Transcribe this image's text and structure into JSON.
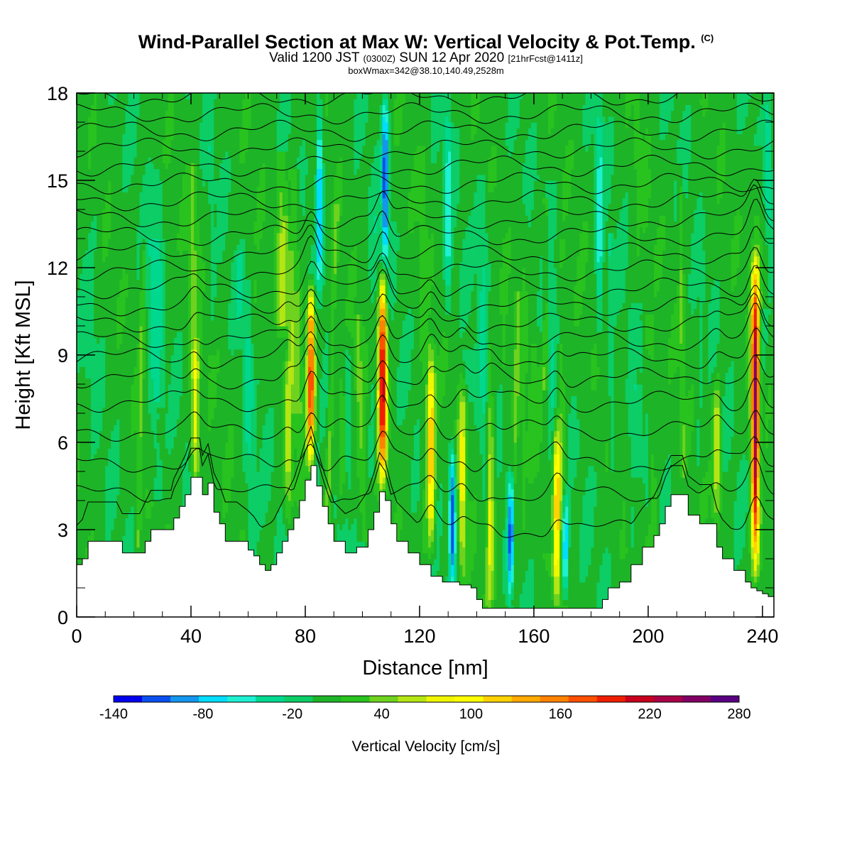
{
  "title": "Wind-Parallel Section at Max W: Vertical Velocity & Pot.Temp.",
  "title_mark": "(C)",
  "subtitle_parts": [
    "Valid 1200 JST ",
    "(0300Z)",
    " SUN 12 Apr 2020 ",
    "[21hrFcst@1411z]"
  ],
  "subtitle2": "boxWmax=342@38.10,140.49,2528m",
  "chart_data": {
    "type": "heatmap",
    "xlabel": "Distance [nm]",
    "ylabel": "Height [Kft MSL]",
    "xlim": [
      0,
      244
    ],
    "ylim": [
      0,
      18
    ],
    "xticks": [
      "0",
      "40",
      "80",
      "120",
      "160",
      "200",
      "240"
    ],
    "yticks": [
      "0",
      "3",
      "6",
      "9",
      "12",
      "15",
      "18"
    ],
    "colorbar": {
      "label": "Vertical Velocity [cm/s]",
      "tick_labels": [
        "-140",
        "-80",
        "-20",
        "40",
        "100",
        "160",
        "220",
        "280"
      ],
      "levels": [
        -140,
        -120,
        -100,
        -80,
        -60,
        -40,
        -20,
        0,
        20,
        40,
        60,
        80,
        100,
        120,
        140,
        160,
        180,
        200,
        220,
        240,
        260,
        280
      ],
      "colors": [
        "#0000ee",
        "#0a50f0",
        "#1496ee",
        "#00ddff",
        "#1ef0d2",
        "#00d890",
        "#0ccd66",
        "#1eb428",
        "#28c31e",
        "#6ed21e",
        "#b4e614",
        "#f0f500",
        "#ffff00",
        "#ffd200",
        "#ffaa00",
        "#ff8200",
        "#ff5000",
        "#f01e00",
        "#c8001e",
        "#aa0046",
        "#820064",
        "#5a0082"
      ]
    },
    "terrain_kft": [
      [
        0,
        1.8
      ],
      [
        2,
        2.0
      ],
      [
        4,
        2.6
      ],
      [
        14,
        2.6
      ],
      [
        16,
        2.2
      ],
      [
        22,
        2.2
      ],
      [
        24,
        2.6
      ],
      [
        26,
        3.0
      ],
      [
        33,
        3.0
      ],
      [
        34,
        3.4
      ],
      [
        36,
        3.8
      ],
      [
        38,
        4.2
      ],
      [
        40,
        4.8
      ],
      [
        43,
        4.8
      ],
      [
        44,
        4.2
      ],
      [
        46,
        4.6
      ],
      [
        48,
        3.6
      ],
      [
        50,
        3.2
      ],
      [
        52,
        2.6
      ],
      [
        56,
        2.6
      ],
      [
        60,
        2.3
      ],
      [
        62,
        2.1
      ],
      [
        64,
        1.8
      ],
      [
        66,
        1.6
      ],
      [
        68,
        1.8
      ],
      [
        70,
        2.2
      ],
      [
        72,
        2.6
      ],
      [
        74,
        3.0
      ],
      [
        76,
        3.4
      ],
      [
        78,
        4.0
      ],
      [
        80,
        4.7
      ],
      [
        82,
        5.2
      ],
      [
        84,
        4.5
      ],
      [
        86,
        3.8
      ],
      [
        88,
        3.2
      ],
      [
        90,
        2.6
      ],
      [
        94,
        2.2
      ],
      [
        98,
        2.4
      ],
      [
        102,
        3.0
      ],
      [
        104,
        3.6
      ],
      [
        106,
        4.3
      ],
      [
        108,
        4.0
      ],
      [
        110,
        3.2
      ],
      [
        112,
        2.6
      ],
      [
        116,
        2.2
      ],
      [
        120,
        1.8
      ],
      [
        124,
        1.4
      ],
      [
        128,
        1.2
      ],
      [
        134,
        1.1
      ],
      [
        138,
        1.0
      ],
      [
        140,
        0.6
      ],
      [
        142,
        0.3
      ],
      [
        182,
        0.3
      ],
      [
        184,
        0.6
      ],
      [
        186,
        1.0
      ],
      [
        190,
        1.2
      ],
      [
        194,
        1.8
      ],
      [
        198,
        2.4
      ],
      [
        202,
        2.8
      ],
      [
        204,
        3.2
      ],
      [
        206,
        3.8
      ],
      [
        208,
        4.2
      ],
      [
        212,
        4.2
      ],
      [
        214,
        3.5
      ],
      [
        218,
        3.2
      ],
      [
        222,
        3.2
      ],
      [
        224,
        2.4
      ],
      [
        226,
        2.0
      ],
      [
        230,
        1.6
      ],
      [
        234,
        1.2
      ],
      [
        236,
        1.0
      ],
      [
        238,
        0.9
      ],
      [
        240,
        0.8
      ],
      [
        242,
        0.7
      ],
      [
        244,
        0.7
      ]
    ],
    "updraft_cores": [
      {
        "x": 41.5,
        "peak": 90,
        "top": 9.5,
        "bottom": 4
      },
      {
        "x": 74,
        "peak": 70,
        "top": 9,
        "bottom": 3
      },
      {
        "x": 82,
        "peak": 230,
        "top": 11.5,
        "bottom": 5
      },
      {
        "x": 93,
        "peak": 55,
        "top": 8.5,
        "bottom": 3
      },
      {
        "x": 107,
        "peak": 240,
        "top": 12,
        "bottom": 4.4
      },
      {
        "x": 124,
        "peak": 140,
        "top": 9.5,
        "bottom": 2
      },
      {
        "x": 135,
        "peak": 80,
        "top": 8.5,
        "bottom": 1
      },
      {
        "x": 145,
        "peak": 60,
        "top": 7.5,
        "bottom": 0.5
      },
      {
        "x": 168,
        "peak": 130,
        "top": 7,
        "bottom": 0.3
      },
      {
        "x": 224,
        "peak": 80,
        "top": 8.5,
        "bottom": 3
      },
      {
        "x": 237.5,
        "peak": 250,
        "top": 12.5,
        "bottom": 1
      }
    ],
    "downdraft_cores": [
      {
        "x": 85,
        "peak": -100,
        "top": 18,
        "bottom": 11
      },
      {
        "x": 108,
        "peak": -130,
        "top": 18,
        "bottom": 12
      },
      {
        "x": 131.5,
        "peak": -130,
        "top": 6,
        "bottom": 1
      },
      {
        "x": 152,
        "peak": -120,
        "top": 5,
        "bottom": 0.3
      },
      {
        "x": 171,
        "peak": -100,
        "top": 4.5,
        "bottom": 0.5
      },
      {
        "x": 130,
        "peak": -60,
        "top": 18,
        "bottom": 10
      },
      {
        "x": 183,
        "peak": -60,
        "top": 18,
        "bottom": 9
      },
      {
        "x": 242,
        "peak": -50,
        "top": 18,
        "bottom": 13
      }
    ],
    "theta_contour_heights_kft": [
      3.0,
      4.2,
      5.3,
      6.4,
      7.4,
      8.2,
      8.9,
      9.5,
      10.1,
      10.7,
      11.3,
      11.9,
      12.5,
      13.1,
      13.7,
      14.3,
      14.9,
      15.5,
      16.1,
      16.7,
      17.3,
      17.9
    ]
  }
}
